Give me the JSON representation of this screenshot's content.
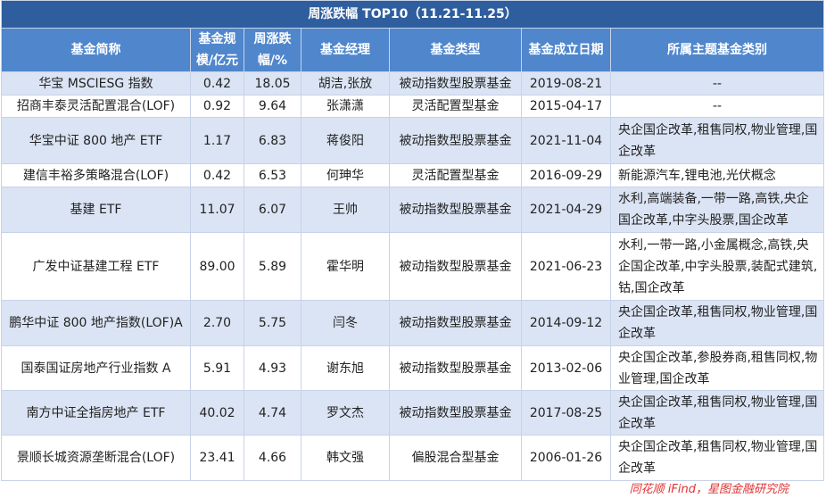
{
  "title": "周涨跌幅 TOP10（11.21-11.25）",
  "table": {
    "header": [
      "基金简称",
      "基金规模/亿元",
      "周涨跌幅/%",
      "基金经理",
      "基金类型",
      "基金成立日期",
      "所属主题基金类别"
    ],
    "rows": [
      [
        "华宝 MSCIESG 指数",
        "0.42",
        "18.05",
        "胡洁,张放",
        "被动指数型股票基金",
        "2019-08-21",
        "--"
      ],
      [
        "招商丰泰灵活配置混合(LOF)",
        "0.92",
        "9.64",
        "张潇潇",
        "灵活配置型基金",
        "2015-04-17",
        "--"
      ],
      [
        "华宝中证 800 地产 ETF",
        "1.17",
        "6.83",
        "蒋俊阳",
        "被动指数型股票基金",
        "2021-11-04",
        "央企国企改革,租售同权,物业管理,国企改革"
      ],
      [
        "建信丰裕多策略混合(LOF)",
        "0.42",
        "6.53",
        "何珅华",
        "灵活配置型基金",
        "2016-09-29",
        "新能源汽车,锂电池,光伏概念"
      ],
      [
        "基建 ETF",
        "11.07",
        "6.07",
        "王帅",
        "被动指数型股票基金",
        "2021-04-29",
        "水利,高端装备,一带一路,高铁,央企国企改革,中字头股票,国企改革"
      ],
      [
        "广发中证基建工程 ETF",
        "89.00",
        "5.89",
        "霍华明",
        "被动指数型股票基金",
        "2021-06-23",
        "水利,一带一路,小金属概念,高铁,央企国企改革,中字头股票,装配式建筑,钴,国企改革"
      ],
      [
        "鹏华中证 800 地产指数(LOF)A",
        "2.70",
        "5.75",
        "闫冬",
        "被动指数型股票基金",
        "2014-09-12",
        "央企国企改革,租售同权,物业管理,国企改革"
      ],
      [
        "国泰国证房地产行业指数 A",
        "5.91",
        "4.93",
        "谢东旭",
        "被动指数型股票基金",
        "2013-02-06",
        "央企国企改革,参股券商,租售同权,物业管理,国企改革"
      ],
      [
        "南方中证全指房地产 ETF",
        "40.02",
        "4.74",
        "罗文杰",
        "被动指数型股票基金",
        "2017-08-25",
        "央企国企改革,租售同权,物业管理,国企改革"
      ],
      [
        "景顺长城资源垄断混合(LOF)",
        "23.41",
        "4.66",
        "韩文强",
        "偏股混合型基金",
        "2006-01-26",
        "央企国企改革,租售同权,物业管理,国企改革"
      ]
    ]
  },
  "source": "同花顺 iFind，星图金融研究院"
}
